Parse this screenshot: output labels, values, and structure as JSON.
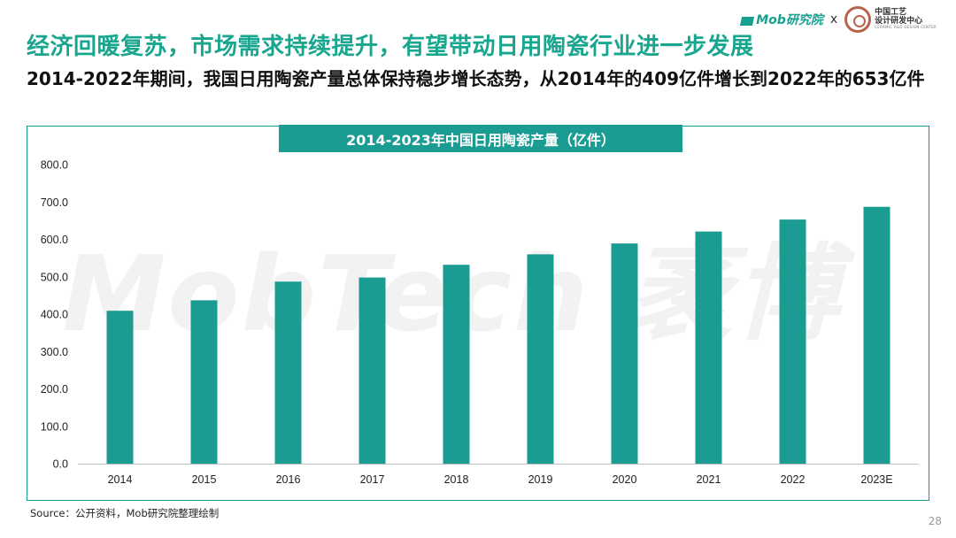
{
  "header": {
    "mob_logo_text": "Mob研究院",
    "separator": "x",
    "partner_line1": "中国工艺",
    "partner_line2": "设计研发中心",
    "partner_line3": "CERAMIC R&D DESIGN CENTER"
  },
  "headline": "经济回暖复苏，市场需求持续提升，有望带动日用陶瓷行业进一步发展",
  "subhead": "2014-2022年期间，我国日用陶瓷产量总体保持稳步增长态势，从2014年的409亿件增长到2022年的653亿件",
  "watermark": "MobTech 袤博",
  "chart_data": {
    "type": "bar",
    "title": "2014-2023年中国日用陶瓷产量（亿件）",
    "categories": [
      "2014",
      "2015",
      "2016",
      "2017",
      "2018",
      "2019",
      "2020",
      "2021",
      "2022",
      "2023E"
    ],
    "values": [
      409,
      437,
      487,
      498,
      532,
      560,
      589,
      621,
      653,
      687
    ],
    "ylim": [
      0,
      800
    ],
    "yticks": [
      "0.0",
      "100.0",
      "200.0",
      "300.0",
      "400.0",
      "500.0",
      "600.0",
      "700.0",
      "800.0"
    ],
    "xlabel": "",
    "ylabel": "",
    "grid": false,
    "bar_color": "#1a9c93"
  },
  "source": "Source：公开资料，Mob研究院整理绘制",
  "page_number": "28"
}
